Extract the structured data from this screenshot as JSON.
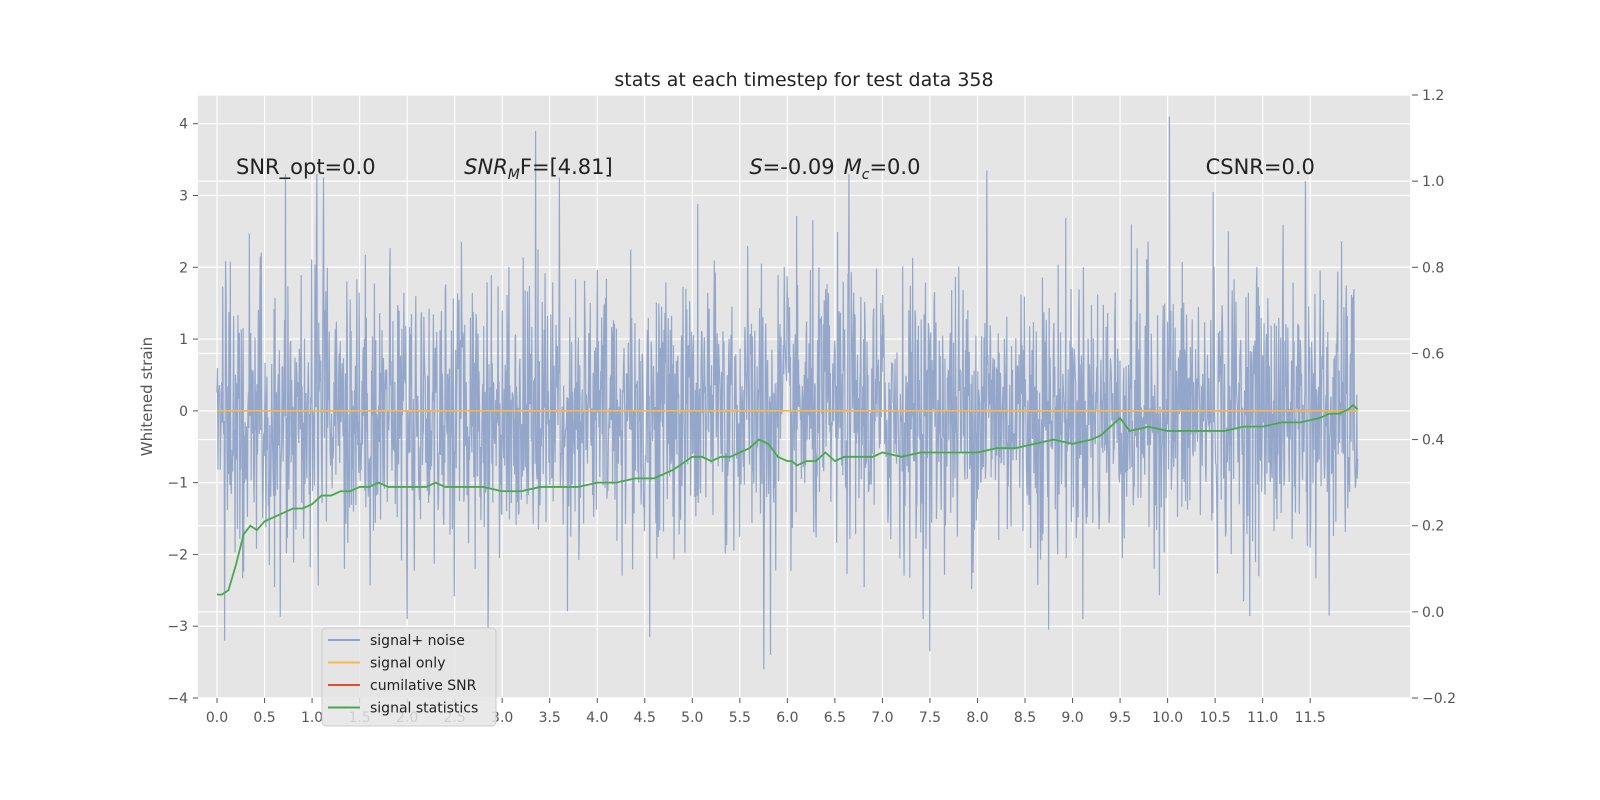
{
  "chart_data": {
    "type": "line",
    "title": "stats at each timestep for test data 358",
    "ylabel": "Whitened strain",
    "xlim": [
      -0.2,
      12.55
    ],
    "ylim": [
      -4,
      4.4
    ],
    "y2lim": [
      -0.2,
      1.2
    ],
    "x_ticks": [
      "0.0",
      "0.5",
      "1.0",
      "1.5",
      "2.0",
      "2.5",
      "3.0",
      "3.5",
      "4.0",
      "4.5",
      "5.0",
      "5.5",
      "6.0",
      "6.5",
      "7.0",
      "7.5",
      "8.0",
      "8.5",
      "9.0",
      "9.5",
      "10.0",
      "10.5",
      "11.0",
      "11.5"
    ],
    "y_ticks": [
      "−4",
      "−3",
      "−2",
      "−1",
      "0",
      "1",
      "2",
      "3",
      "4"
    ],
    "y2_ticks": [
      "−0.2",
      "0.0",
      "0.2",
      "0.4",
      "0.6",
      "0.8",
      "1.0",
      "1.2"
    ],
    "grid": true,
    "legend_position": "lower-left",
    "annotations": [
      {
        "text": "SNR_opt=0.0",
        "x": 0.2,
        "y": 3.3
      },
      {
        "text_prefix": "SNR",
        "text_sub": "M",
        "text_suffix": "F=[4.81]",
        "x": 2.6,
        "y": 3.3
      },
      {
        "text_s": "S",
        "text_s_val": "=-0.09",
        "text_m": "M",
        "text_m_sub": "c",
        "text_m_val": "=0.0",
        "x": 5.6,
        "y": 3.3
      },
      {
        "text": "CSNR=0.0",
        "x": 10.4,
        "y": 3.3
      }
    ],
    "series": [
      {
        "name": "signal+ noise",
        "color": "#8fa3c8",
        "axis": "left",
        "style": "dense-noise",
        "x_range": [
          0.0,
          12.0
        ],
        "y_range": [
          -3.6,
          4.1
        ],
        "spikes": [
          {
            "x": 0.08,
            "y": -3.2
          },
          {
            "x": 0.72,
            "y": 3.3
          },
          {
            "x": 1.05,
            "y": 3.3
          },
          {
            "x": 1.12,
            "y": 3.25
          },
          {
            "x": 2.0,
            "y": -2.9
          },
          {
            "x": 2.85,
            "y": -3.05
          },
          {
            "x": 3.35,
            "y": 3.9
          },
          {
            "x": 3.6,
            "y": 3.25
          },
          {
            "x": 4.55,
            "y": -3.15
          },
          {
            "x": 5.75,
            "y": -3.6
          },
          {
            "x": 5.82,
            "y": -3.4
          },
          {
            "x": 6.65,
            "y": 3.3
          },
          {
            "x": 7.5,
            "y": -3.35
          },
          {
            "x": 8.1,
            "y": 3.35
          },
          {
            "x": 8.75,
            "y": -3.05
          },
          {
            "x": 10.02,
            "y": 4.1
          },
          {
            "x": 10.48,
            "y": 3.05
          },
          {
            "x": 11.45,
            "y": 3.2
          },
          {
            "x": 11.7,
            "y": -2.85
          },
          {
            "x": 6.0,
            "y": 1.35
          }
        ]
      },
      {
        "name": "signal only",
        "color": "#f5b84a",
        "axis": "left",
        "x": [
          0.0,
          12.0
        ],
        "y": [
          0.0,
          0.0
        ]
      },
      {
        "name": "cumilative SNR",
        "color": "#e24a33",
        "axis": "left",
        "x": [],
        "y": []
      },
      {
        "name": "signal statistics",
        "color": "#4aa84a",
        "axis": "right",
        "x": [
          0.0,
          0.05,
          0.12,
          0.2,
          0.28,
          0.35,
          0.42,
          0.5,
          0.6,
          0.7,
          0.8,
          0.9,
          1.0,
          1.1,
          1.2,
          1.3,
          1.4,
          1.5,
          1.6,
          1.7,
          1.8,
          1.9,
          2.0,
          2.1,
          2.2,
          2.3,
          2.4,
          2.5,
          2.6,
          2.8,
          3.0,
          3.2,
          3.4,
          3.6,
          3.8,
          4.0,
          4.2,
          4.4,
          4.6,
          4.8,
          5.0,
          5.1,
          5.2,
          5.3,
          5.4,
          5.5,
          5.6,
          5.7,
          5.8,
          5.9,
          6.0,
          6.05,
          6.1,
          6.2,
          6.3,
          6.4,
          6.5,
          6.6,
          6.7,
          6.8,
          6.9,
          7.0,
          7.2,
          7.4,
          7.6,
          7.8,
          8.0,
          8.2,
          8.4,
          8.6,
          8.8,
          9.0,
          9.2,
          9.3,
          9.4,
          9.5,
          9.6,
          9.8,
          10.0,
          10.2,
          10.4,
          10.6,
          10.8,
          11.0,
          11.2,
          11.4,
          11.6,
          11.7,
          11.8,
          11.9,
          11.95,
          12.0
        ],
        "y": [
          0.04,
          0.04,
          0.05,
          0.11,
          0.18,
          0.2,
          0.19,
          0.21,
          0.22,
          0.23,
          0.24,
          0.24,
          0.25,
          0.27,
          0.27,
          0.28,
          0.28,
          0.29,
          0.29,
          0.3,
          0.29,
          0.29,
          0.29,
          0.29,
          0.29,
          0.3,
          0.29,
          0.29,
          0.29,
          0.29,
          0.28,
          0.28,
          0.29,
          0.29,
          0.29,
          0.3,
          0.3,
          0.31,
          0.31,
          0.33,
          0.36,
          0.36,
          0.35,
          0.36,
          0.36,
          0.37,
          0.38,
          0.4,
          0.39,
          0.36,
          0.35,
          0.35,
          0.34,
          0.35,
          0.35,
          0.37,
          0.35,
          0.36,
          0.36,
          0.36,
          0.36,
          0.37,
          0.36,
          0.37,
          0.37,
          0.37,
          0.37,
          0.38,
          0.38,
          0.39,
          0.4,
          0.39,
          0.4,
          0.41,
          0.43,
          0.45,
          0.42,
          0.43,
          0.42,
          0.42,
          0.42,
          0.42,
          0.43,
          0.43,
          0.44,
          0.44,
          0.45,
          0.46,
          0.46,
          0.47,
          0.48,
          0.47
        ]
      }
    ]
  }
}
